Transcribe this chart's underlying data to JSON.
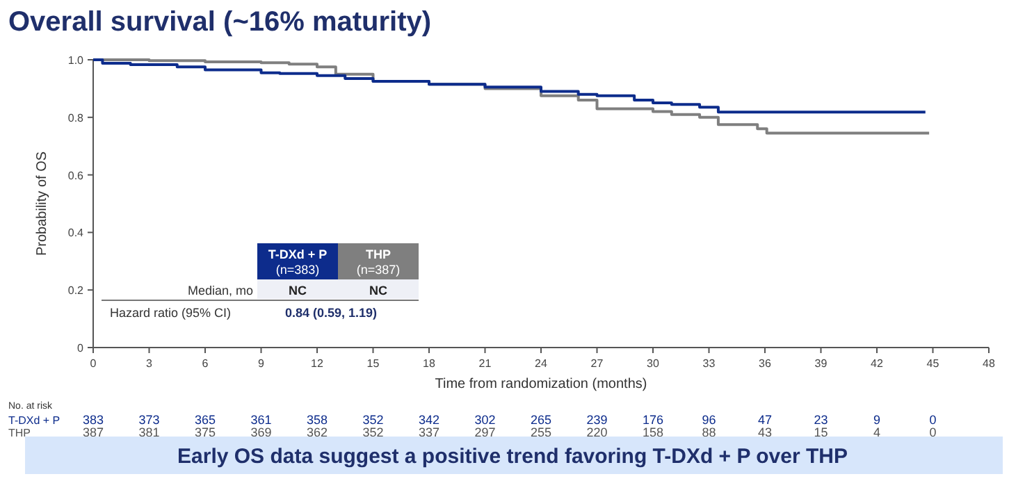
{
  "chart_data": {
    "type": "step",
    "title": "Overall survival (~16% maturity)",
    "xlabel": "Time from randomization (months)",
    "ylabel": "Probability of OS",
    "xlim": [
      0,
      48
    ],
    "xticks": [
      0,
      3,
      6,
      9,
      12,
      15,
      18,
      21,
      24,
      27,
      30,
      33,
      36,
      39,
      42,
      45,
      48
    ],
    "ylim": [
      0,
      1
    ],
    "yticks": [
      0,
      0.2,
      0.4,
      0.6,
      0.8,
      {
        "value": 1,
        "label": "1.0"
      }
    ],
    "grid": false,
    "legend": "bottom left",
    "line_style": "solid",
    "series": [
      {
        "name": "T-DXd + P",
        "color": "#0d2c8c",
        "x": [
          0,
          0.5,
          2,
          4.5,
          6,
          9,
          10,
          12,
          13.5,
          15,
          18,
          21,
          24,
          26,
          27,
          29,
          30,
          31,
          32.5,
          33.5,
          44.6
        ],
        "values": [
          1,
          0.988,
          0.983,
          0.975,
          0.965,
          0.955,
          0.952,
          0.945,
          0.935,
          0.925,
          0.915,
          0.905,
          0.89,
          0.88,
          0.875,
          0.86,
          0.85,
          0.845,
          0.835,
          0.818,
          0.818
        ]
      },
      {
        "name": "THP",
        "color": "#7f7f7f",
        "x": [
          0,
          3,
          6,
          9,
          10.5,
          12,
          13,
          15,
          18,
          21,
          24,
          26,
          27,
          29.5,
          30,
          31,
          32.5,
          33.5,
          35.6,
          36.1,
          44.8
        ],
        "values": [
          1,
          0.997,
          0.993,
          0.99,
          0.985,
          0.975,
          0.95,
          0.925,
          0.915,
          0.9,
          0.875,
          0.86,
          0.83,
          0.83,
          0.82,
          0.81,
          0.8,
          0.775,
          0.76,
          0.745,
          0.745
        ]
      }
    ],
    "annotations": [
      "(n=383)",
      "(n=387)",
      "Median, mo",
      "NC",
      "NC",
      "Hazard ratio (95% CI)",
      "0.84 (0.59, 1.19)",
      "No. at risk",
      "T-DXd + P",
      "383 373 365 361 358 352 342 302 265 239 176 96 47 23 9 0",
      "THP",
      "387 381 375 369 362 352 337 297 255 220 158 88 43 15 4 0",
      "Early OS data suggest a positive trend favoring T-DXd + P over THP"
    ]
  }
}
